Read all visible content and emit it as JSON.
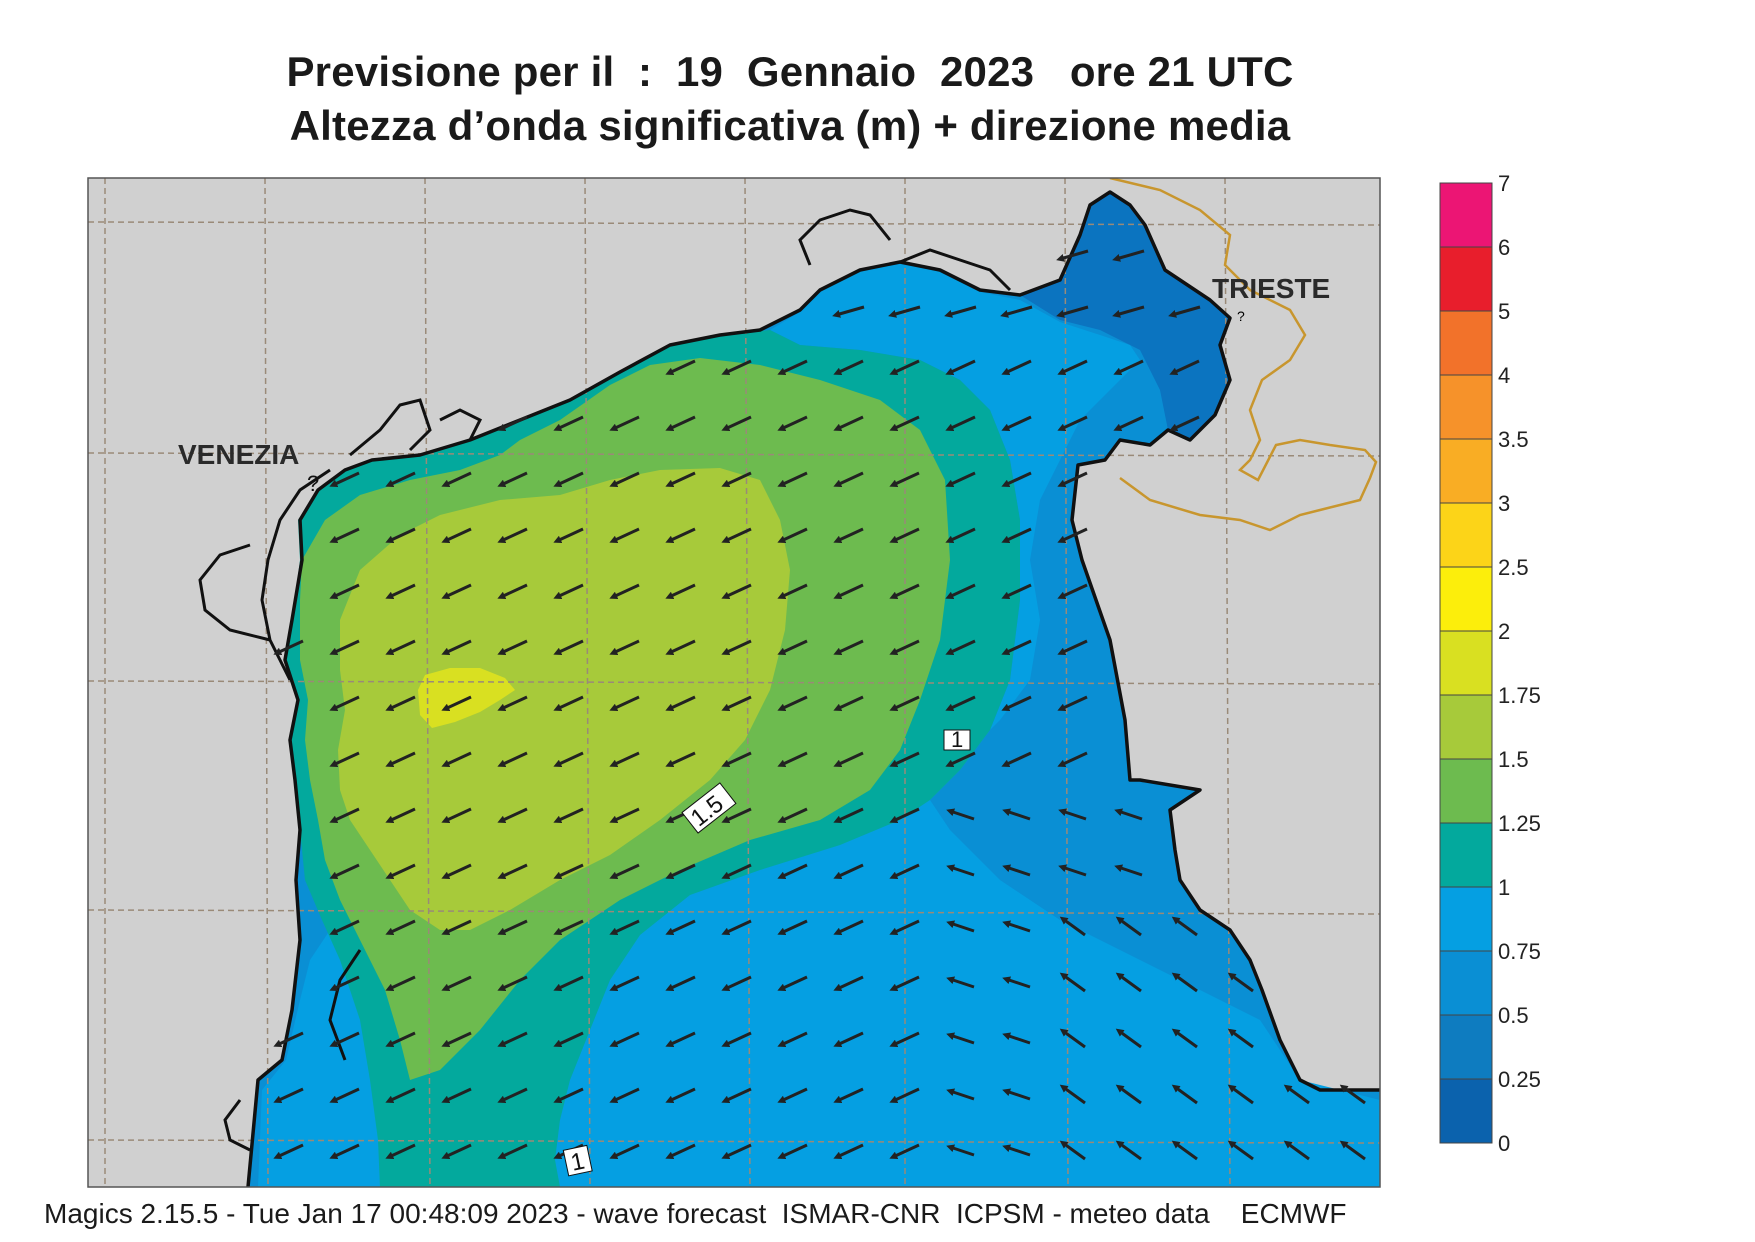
{
  "title": {
    "line1": "Previsione per il  :  19  Gennaio  2023   ore 21 UTC",
    "line2": "Altezza d’onda significativa (m) + direzione media"
  },
  "footer": "Magics 2.15.5 - Tue Jan 17 00:48:09 2023 - wave forecast  ISMAR-CNR  ICPSM - meteo data    ECMWF",
  "map": {
    "cities": [
      {
        "name": "VENEZIA",
        "id": "venezia"
      },
      {
        "name": "TRIESTE",
        "id": "trieste"
      }
    ],
    "contour_labels": [
      "1",
      "1.5",
      "1"
    ],
    "arrow_direction": "south-west"
  },
  "colorbar": {
    "ticks": [
      "7",
      "6",
      "5",
      "4",
      "3.5",
      "3",
      "2.5",
      "2",
      "1.75",
      "1.5",
      "1.25",
      "1",
      "0.75",
      "0.5",
      "0.25",
      "0"
    ],
    "colors": [
      "#ec1574",
      "#e81e2c",
      "#f2722a",
      "#f6922a",
      "#f9ad24",
      "#fcd418",
      "#fcee0b",
      "#d9e021",
      "#a7ca3a",
      "#6dbb4f",
      "#03a99d",
      "#059fe2",
      "#0a8fd4",
      "#0e7cc0",
      "#0b62ad"
    ],
    "colors_note_order": "top-to-bottom"
  },
  "colors": {
    "land": "#d0d0d0",
    "border": "#c8962e",
    "grid": "#9a8a78"
  }
}
